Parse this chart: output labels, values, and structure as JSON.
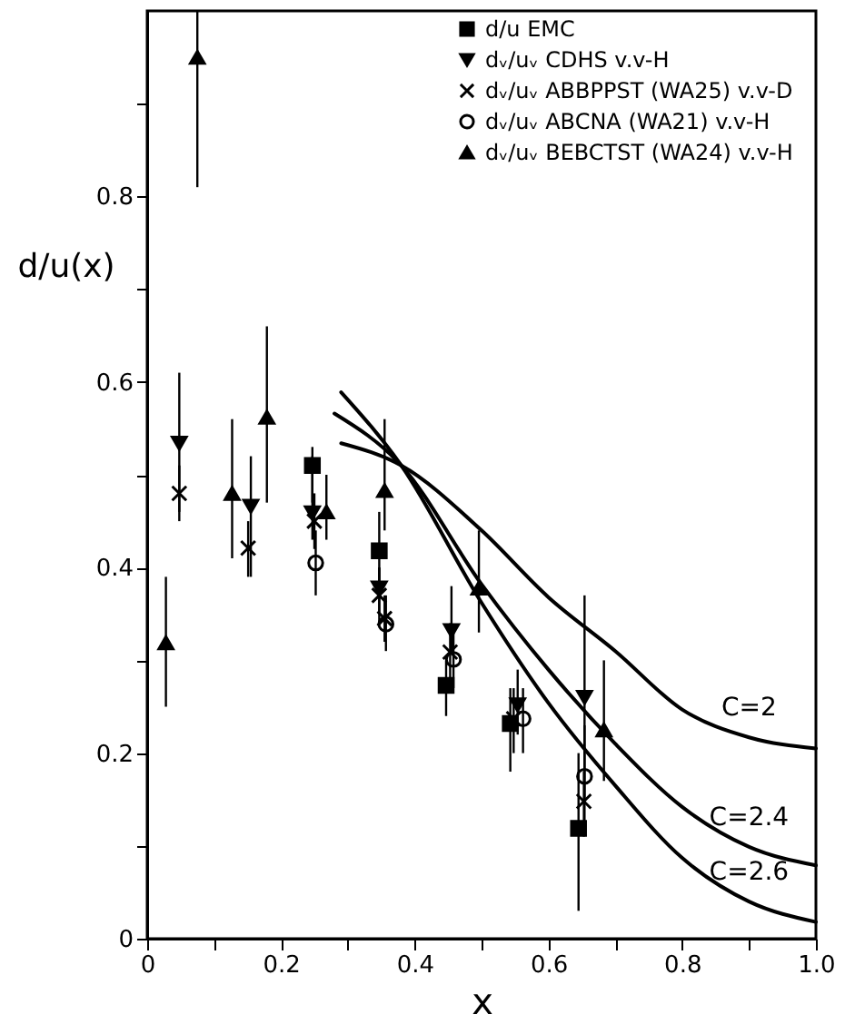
{
  "chart_data": {
    "type": "scatter",
    "xlabel": "x",
    "ylabel": "d/u(x)",
    "xlim": [
      0,
      1
    ],
    "ylim": [
      0,
      1
    ],
    "xticks": [
      0,
      {
        "value": 0.1,
        "label": null
      },
      0.2,
      {
        "value": 0.3,
        "label": null
      },
      0.4,
      {
        "value": 0.5,
        "label": null
      },
      0.6,
      {
        "value": 0.7,
        "label": null
      },
      0.8,
      {
        "value": 0.9,
        "label": null
      },
      {
        "value": 1,
        "label": "1.0"
      }
    ],
    "yticks": [
      0,
      {
        "value": 0.1,
        "label": null
      },
      0.2,
      {
        "value": 0.3,
        "label": null
      },
      0.4,
      {
        "value": 0.5,
        "label": null
      },
      0.6,
      {
        "value": 0.7,
        "label": null
      },
      0.8,
      {
        "value": 0.9,
        "label": null
      }
    ],
    "grid": false,
    "legend": "top right",
    "series": [
      {
        "name": "d/u  EMC",
        "color": "#000000",
        "marker": "square",
        "x": [
          0.247,
          0.347,
          0.447,
          0.543,
          0.645
        ],
        "values": [
          0.51,
          0.418,
          0.273,
          0.232,
          0.119
        ],
        "errors": [
          [
            0.47,
            0.53
          ],
          [
            0.37,
            0.46
          ],
          [
            0.24,
            0.3
          ],
          [
            0.18,
            0.27
          ],
          [
            0.03,
            0.2
          ]
        ]
      },
      {
        "name": "dᵥ/uᵥ  CDHS  v.v-H",
        "color": "#000000",
        "marker": "triangle-down",
        "x": [
          0.048,
          0.155,
          0.247,
          0.347,
          0.455,
          0.554,
          0.654
        ],
        "values": [
          0.534,
          0.466,
          0.459,
          0.378,
          0.332,
          0.252,
          0.26
        ],
        "errors": [
          [
            0.46,
            0.61
          ],
          [
            0.39,
            0.52
          ],
          [
            0.43,
            0.52
          ],
          [
            0.35,
            0.4
          ],
          [
            0.31,
            0.38
          ],
          [
            0.22,
            0.29
          ],
          [
            0.15,
            0.37
          ]
        ]
      },
      {
        "name": "dᵥ/uᵥ  ABBPPST (WA25)  v.v-D",
        "color": "#000000",
        "marker": "x",
        "x": [
          0.048,
          0.151,
          0.25,
          0.347,
          0.355,
          0.453,
          0.548,
          0.653
        ],
        "values": [
          0.48,
          0.421,
          0.45,
          0.37,
          0.345,
          0.309,
          0.237,
          0.148
        ],
        "errors": [
          [
            0.45,
            0.51
          ],
          [
            0.39,
            0.45
          ],
          [
            0.42,
            0.48
          ],
          [
            0.34,
            0.4
          ],
          [
            0.32,
            0.37
          ],
          [
            0.28,
            0.34
          ],
          [
            0.2,
            0.27
          ],
          [
            0.11,
            0.18
          ]
        ]
      },
      {
        "name": "dᵥ/uᵥ  ABCNA (WA21)  v.v-H",
        "color": "#000000",
        "marker": "circle_open",
        "x": [
          0.252,
          0.357,
          0.458,
          0.562,
          0.654
        ],
        "values": [
          0.405,
          0.339,
          0.301,
          0.237,
          0.175
        ],
        "errors": [
          [
            0.37,
            0.44
          ],
          [
            0.31,
            0.37
          ],
          [
            0.27,
            0.33
          ],
          [
            0.2,
            0.27
          ],
          [
            0.12,
            0.23
          ]
        ]
      },
      {
        "name": "dᵥ/uᵥ  BEBCTST (WA24)  v.v-H",
        "color": "#000000",
        "marker": "triangle",
        "x": [
          0.028,
          0.075,
          0.127,
          0.179,
          0.268,
          0.355,
          0.496,
          0.683
        ],
        "values": [
          0.319,
          0.95,
          0.48,
          0.562,
          0.46,
          0.483,
          0.378,
          0.225
        ],
        "errors": [
          [
            0.25,
            0.39
          ],
          [
            0.81,
            1.0
          ],
          [
            0.41,
            0.56
          ],
          [
            0.47,
            0.66
          ],
          [
            0.43,
            0.5
          ],
          [
            0.44,
            0.56
          ],
          [
            0.33,
            0.44
          ],
          [
            0.17,
            0.3
          ]
        ]
      },
      {
        "name": "C=2",
        "type": "line",
        "color": "#000000",
        "line_style": "solid",
        "marker": "none",
        "x": [
          0.29,
          0.38,
          0.5,
          0.6,
          0.7,
          0.8,
          0.9,
          1.0
        ],
        "values": [
          0.534,
          0.51,
          0.44,
          0.368,
          0.31,
          0.247,
          0.217,
          0.205
        ]
      },
      {
        "name": "C=2.4",
        "type": "line",
        "color": "#000000",
        "line_style": "solid",
        "marker": "none",
        "x": [
          0.28,
          0.38,
          0.5,
          0.6,
          0.7,
          0.8,
          0.9,
          1.0
        ],
        "values": [
          0.566,
          0.51,
          0.382,
          0.29,
          0.21,
          0.142,
          0.099,
          0.079
        ]
      },
      {
        "name": "C=2.6",
        "type": "line",
        "color": "#000000",
        "line_style": "solid",
        "marker": "none",
        "x": [
          0.29,
          0.38,
          0.5,
          0.6,
          0.7,
          0.8,
          0.9,
          1.0
        ],
        "values": [
          0.589,
          0.51,
          0.362,
          0.254,
          0.165,
          0.087,
          0.04,
          0.018
        ]
      }
    ]
  }
}
